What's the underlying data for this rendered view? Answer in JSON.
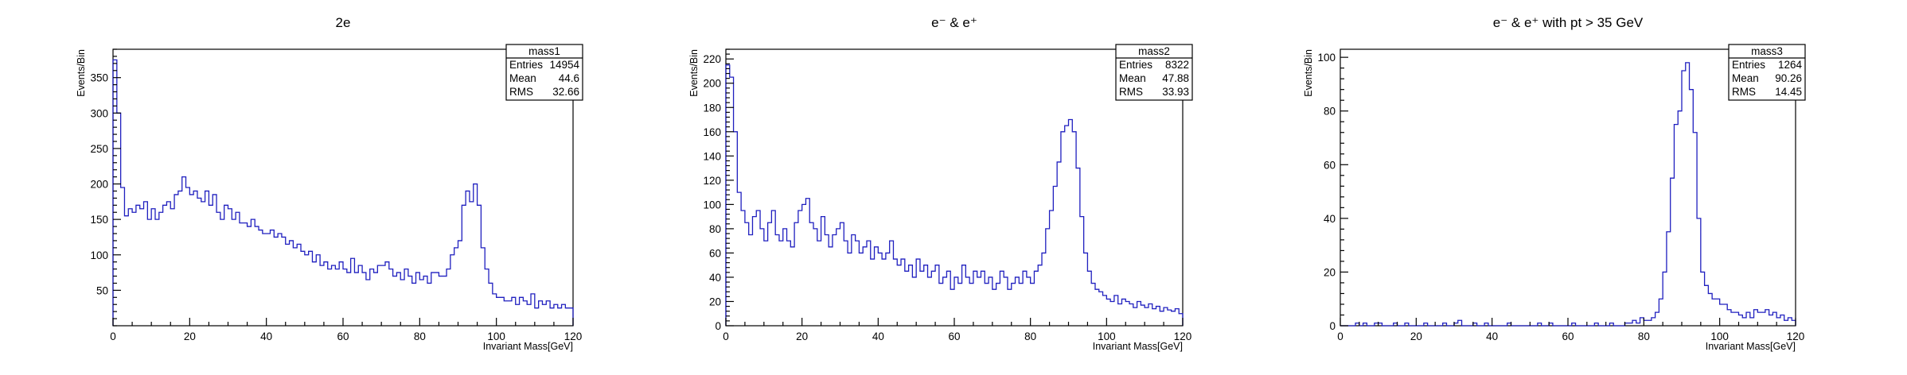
{
  "chart_data": [
    {
      "type": "histogram",
      "title": "2e",
      "xlabel": "Invariant Mass[GeV]",
      "ylabel": "Events/Bin",
      "xlim": [
        0,
        120
      ],
      "ylim": [
        0,
        390
      ],
      "xticks": [
        0,
        20,
        40,
        60,
        80,
        100,
        120
      ],
      "yticks": [
        50,
        100,
        150,
        200,
        250,
        300,
        350
      ],
      "line_color": "#1f1fbf",
      "bin_edges": {
        "start": 0,
        "width": 1
      },
      "values": [
        375,
        300,
        195,
        155,
        165,
        160,
        170,
        165,
        175,
        150,
        165,
        150,
        160,
        170,
        175,
        165,
        185,
        190,
        210,
        195,
        185,
        190,
        180,
        175,
        190,
        170,
        185,
        160,
        150,
        170,
        165,
        150,
        160,
        145,
        145,
        140,
        150,
        140,
        135,
        130,
        130,
        135,
        125,
        130,
        125,
        115,
        120,
        110,
        115,
        105,
        100,
        105,
        90,
        100,
        85,
        90,
        80,
        85,
        80,
        90,
        80,
        75,
        95,
        75,
        85,
        75,
        65,
        80,
        75,
        85,
        85,
        90,
        80,
        70,
        75,
        65,
        80,
        70,
        60,
        75,
        65,
        70,
        60,
        75,
        75,
        70,
        70,
        80,
        100,
        110,
        120,
        170,
        190,
        175,
        200,
        170,
        110,
        80,
        60,
        45,
        40,
        40,
        35,
        35,
        40,
        30,
        40,
        35,
        30,
        45,
        25,
        35,
        30,
        35,
        25,
        30,
        25,
        30,
        25,
        25
      ],
      "stats": {
        "name": "mass1",
        "rows": [
          {
            "label": "Entries",
            "value": "14954"
          },
          {
            "label": "Mean",
            "value": "44.6"
          },
          {
            "label": "RMS",
            "value": "32.66"
          }
        ]
      }
    },
    {
      "type": "histogram",
      "title": "e⁻ & e⁺",
      "xlabel": "Invariant Mass[GeV]",
      "ylabel": "Events/Bin",
      "xlim": [
        0,
        120
      ],
      "ylim": [
        0,
        228
      ],
      "xticks": [
        0,
        20,
        40,
        60,
        80,
        100,
        120
      ],
      "yticks": [
        0,
        20,
        40,
        60,
        80,
        100,
        120,
        140,
        160,
        180,
        200,
        220
      ],
      "line_color": "#1f1fbf",
      "bin_edges": {
        "start": 0,
        "width": 1
      },
      "values": [
        215,
        205,
        160,
        110,
        95,
        85,
        75,
        90,
        95,
        80,
        70,
        85,
        95,
        75,
        70,
        80,
        70,
        65,
        85,
        95,
        100,
        105,
        85,
        80,
        70,
        90,
        75,
        65,
        75,
        80,
        85,
        70,
        60,
        75,
        70,
        60,
        65,
        70,
        55,
        65,
        60,
        55,
        60,
        70,
        55,
        50,
        55,
        45,
        50,
        40,
        55,
        45,
        50,
        40,
        45,
        50,
        35,
        40,
        45,
        30,
        40,
        35,
        50,
        40,
        35,
        45,
        40,
        45,
        35,
        40,
        30,
        35,
        45,
        40,
        30,
        35,
        40,
        35,
        45,
        40,
        35,
        45,
        50,
        60,
        80,
        95,
        115,
        135,
        160,
        165,
        170,
        160,
        130,
        90,
        60,
        45,
        35,
        30,
        28,
        25,
        22,
        20,
        25,
        18,
        22,
        20,
        18,
        15,
        20,
        17,
        15,
        18,
        14,
        16,
        12,
        15,
        13,
        12,
        14,
        10
      ],
      "stats": {
        "name": "mass2",
        "rows": [
          {
            "label": "Entries",
            "value": "8322"
          },
          {
            "label": "Mean",
            "value": "47.88"
          },
          {
            "label": "RMS",
            "value": "33.93"
          }
        ]
      }
    },
    {
      "type": "histogram",
      "title": "e⁻ & e⁺ with pt > 35 GeV",
      "xlabel": "Invariant Mass[GeV]",
      "ylabel": "Events/Bin",
      "xlim": [
        0,
        120
      ],
      "ylim": [
        0,
        103
      ],
      "xticks": [
        0,
        20,
        40,
        60,
        80,
        100,
        120
      ],
      "yticks": [
        0,
        20,
        40,
        60,
        80,
        100
      ],
      "line_color": "#1f1fbf",
      "bin_edges": {
        "start": 0,
        "width": 1
      },
      "values": [
        0,
        0,
        0,
        0,
        1,
        0,
        1,
        0,
        0,
        1,
        1,
        0,
        0,
        0,
        1,
        0,
        0,
        1,
        0,
        0,
        0,
        0,
        1,
        0,
        0,
        0,
        0,
        1,
        0,
        0,
        1,
        2,
        0,
        0,
        0,
        1,
        0,
        0,
        1,
        0,
        0,
        0,
        0,
        0,
        1,
        0,
        0,
        0,
        0,
        0,
        0,
        0,
        1,
        0,
        0,
        1,
        0,
        0,
        0,
        0,
        0,
        1,
        0,
        0,
        0,
        0,
        0,
        1,
        0,
        0,
        0,
        1,
        0,
        0,
        0,
        1,
        1,
        2,
        1,
        3,
        2,
        2,
        3,
        5,
        10,
        20,
        35,
        55,
        75,
        80,
        95,
        98,
        88,
        72,
        40,
        20,
        15,
        12,
        10,
        10,
        8,
        8,
        6,
        5,
        5,
        4,
        3,
        5,
        3,
        6,
        5,
        5,
        6,
        4,
        5,
        3,
        4,
        2,
        3,
        2
      ],
      "stats": {
        "name": "mass3",
        "rows": [
          {
            "label": "Entries",
            "value": "1264"
          },
          {
            "label": "Mean",
            "value": "90.26"
          },
          {
            "label": "RMS",
            "value": "14.45"
          }
        ]
      }
    }
  ]
}
